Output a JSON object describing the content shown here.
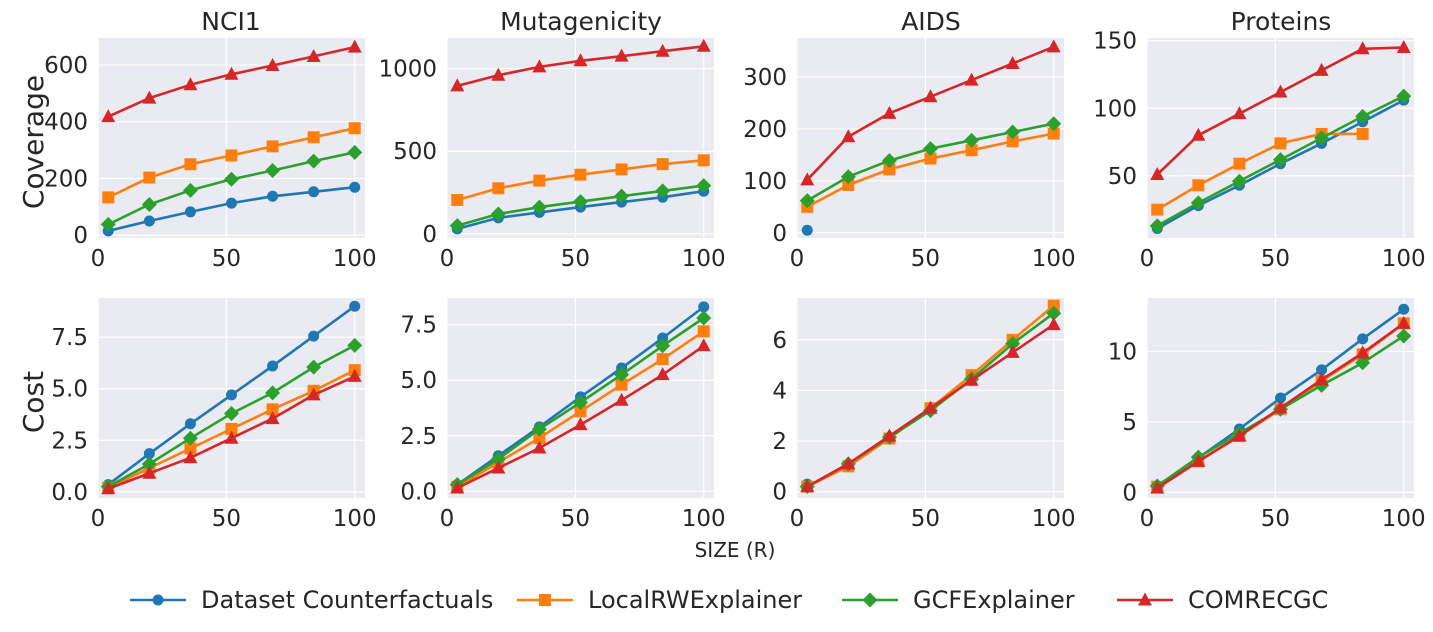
{
  "figure": {
    "column_titles": [
      "NCI1",
      "Mutagenicity",
      "AIDS",
      "Proteins"
    ],
    "row_labels": [
      "Coverage",
      "Cost"
    ],
    "shared_xlabel": "SIZE (R)"
  },
  "series_styles": [
    {
      "name": "Dataset Counterfactuals",
      "color": "#1f77b4",
      "marker": "circle"
    },
    {
      "name": "LocalRWExplainer",
      "color": "#ff7f0e",
      "marker": "square"
    },
    {
      "name": "GCFExplainer",
      "color": "#2ca02c",
      "marker": "diamond"
    },
    {
      "name": "COMRECGC",
      "color": "#d62728",
      "marker": "triangle"
    }
  ],
  "legend": {
    "entries": [
      "Dataset Counterfactuals",
      "LocalRWExplainer",
      "GCFExplainer",
      "COMRECGC"
    ],
    "placement": "bottom-center"
  },
  "chart_data": [
    {
      "type": "line",
      "title": "NCI1",
      "ylabel": "Coverage",
      "xlabel": "",
      "x": [
        4,
        20,
        36,
        52,
        68,
        84,
        100
      ],
      "xlim": [
        0,
        104
      ],
      "ylim": [
        -10,
        695
      ],
      "xticks": [
        0,
        50,
        100
      ],
      "xtick_labels": [
        "0",
        "50",
        "100"
      ],
      "yticks": [
        0,
        200,
        400,
        600
      ],
      "ytick_labels": [
        "0",
        "200",
        "400",
        "600"
      ],
      "series": [
        {
          "name": "Dataset Counterfactuals",
          "values": [
            15,
            50,
            82,
            113,
            137,
            153,
            169
          ]
        },
        {
          "name": "LocalRWExplainer",
          "values": [
            133,
            203,
            250,
            281,
            313,
            345,
            377
          ]
        },
        {
          "name": "GCFExplainer",
          "values": [
            38,
            108,
            158,
            197,
            228,
            261,
            292
          ]
        },
        {
          "name": "COMRECGC",
          "values": [
            418,
            483,
            530,
            567,
            598,
            630,
            663
          ]
        }
      ]
    },
    {
      "type": "line",
      "title": "Mutagenicity",
      "ylabel": "",
      "xlabel": "",
      "x": [
        4,
        20,
        36,
        52,
        68,
        84,
        100
      ],
      "xlim": [
        0,
        104
      ],
      "ylim": [
        -25,
        1185
      ],
      "xticks": [
        0,
        50,
        100
      ],
      "xtick_labels": [
        "0",
        "50",
        "100"
      ],
      "yticks": [
        0,
        500,
        1000
      ],
      "ytick_labels": [
        "0",
        "500",
        "1000"
      ],
      "series": [
        {
          "name": "Dataset Counterfactuals",
          "values": [
            30,
            97,
            130,
            162,
            192,
            222,
            258
          ]
        },
        {
          "name": "LocalRWExplainer",
          "values": [
            205,
            276,
            322,
            358,
            390,
            422,
            445
          ]
        },
        {
          "name": "GCFExplainer",
          "values": [
            50,
            120,
            162,
            195,
            228,
            260,
            292
          ]
        },
        {
          "name": "COMRECGC",
          "values": [
            895,
            960,
            1010,
            1047,
            1075,
            1105,
            1135
          ]
        }
      ]
    },
    {
      "type": "line",
      "title": "AIDS",
      "ylabel": "",
      "xlabel": "",
      "x": [
        4,
        20,
        36,
        52,
        68,
        84,
        100
      ],
      "xlim": [
        0,
        104
      ],
      "ylim": [
        -10,
        375
      ],
      "xticks": [
        0,
        50,
        100
      ],
      "xtick_labels": [
        "0",
        "50",
        "100"
      ],
      "yticks": [
        0,
        100,
        200,
        300
      ],
      "ytick_labels": [
        "0",
        "100",
        "200",
        "300"
      ],
      "series": [
        {
          "name": "Dataset Counterfactuals",
          "x": [
            4
          ],
          "values": [
            5
          ]
        },
        {
          "name": "LocalRWExplainer",
          "values": [
            50,
            92,
            122,
            143,
            159,
            176,
            191
          ]
        },
        {
          "name": "GCFExplainer",
          "values": [
            62,
            108,
            139,
            162,
            178,
            194,
            210
          ]
        },
        {
          "name": "COMRECGC",
          "values": [
            102,
            185,
            230,
            262,
            294,
            326,
            358
          ]
        }
      ]
    },
    {
      "type": "line",
      "title": "Proteins",
      "ylabel": "",
      "xlabel": "",
      "x": [
        4,
        20,
        36,
        52,
        68,
        84,
        100
      ],
      "xlim": [
        0,
        104
      ],
      "ylim": [
        4,
        152
      ],
      "xticks": [
        0,
        50,
        100
      ],
      "xtick_labels": [
        "0",
        "50",
        "100"
      ],
      "yticks": [
        50,
        100,
        150
      ],
      "ytick_labels": [
        "50",
        "100",
        "150"
      ],
      "series": [
        {
          "name": "Dataset Counterfactuals",
          "values": [
            11,
            28,
            43,
            59,
            74,
            90,
            106
          ]
        },
        {
          "name": "LocalRWExplainer",
          "x": [
            4,
            20,
            36,
            52,
            68,
            84
          ],
          "values": [
            25,
            43,
            59,
            74,
            81,
            81
          ]
        },
        {
          "name": "GCFExplainer",
          "values": [
            13,
            30,
            46,
            62,
            78,
            94,
            109
          ]
        },
        {
          "name": "COMRECGC",
          "values": [
            51,
            80,
            96,
            112,
            128,
            144,
            145
          ]
        }
      ]
    },
    {
      "type": "line",
      "title": "",
      "ylabel": "Cost",
      "xlabel": "",
      "x": [
        4,
        20,
        36,
        52,
        68,
        84,
        100
      ],
      "xlim": [
        0,
        104
      ],
      "ylim": [
        -0.3,
        9.4
      ],
      "xticks": [
        0,
        50,
        100
      ],
      "xtick_labels": [
        "0",
        "50",
        "100"
      ],
      "yticks": [
        0.0,
        2.5,
        5.0,
        7.5
      ],
      "ytick_labels": [
        "0.0",
        "2.5",
        "5.0",
        "7.5"
      ],
      "series": [
        {
          "name": "Dataset Counterfactuals",
          "values": [
            0.35,
            1.85,
            3.3,
            4.7,
            6.1,
            7.55,
            9.0
          ]
        },
        {
          "name": "LocalRWExplainer",
          "values": [
            0.2,
            1.15,
            2.1,
            3.05,
            4.0,
            4.9,
            5.9
          ]
        },
        {
          "name": "GCFExplainer",
          "values": [
            0.25,
            1.35,
            2.6,
            3.8,
            4.8,
            6.05,
            7.1
          ]
        },
        {
          "name": "COMRECGC",
          "values": [
            0.15,
            0.9,
            1.65,
            2.6,
            3.55,
            4.7,
            5.6
          ]
        }
      ]
    },
    {
      "type": "line",
      "title": "",
      "ylabel": "",
      "xlabel": "SIZE (R)",
      "x": [
        4,
        20,
        36,
        52,
        68,
        84,
        100
      ],
      "xlim": [
        0,
        104
      ],
      "ylim": [
        -0.3,
        8.7
      ],
      "xticks": [
        0,
        50,
        100
      ],
      "xtick_labels": [
        "0",
        "50",
        "100"
      ],
      "yticks": [
        0.0,
        2.5,
        5.0,
        7.5
      ],
      "ytick_labels": [
        "0.0",
        "2.5",
        "5.0",
        "7.5"
      ],
      "series": [
        {
          "name": "Dataset Counterfactuals",
          "values": [
            0.3,
            1.6,
            2.9,
            4.25,
            5.55,
            6.9,
            8.3
          ]
        },
        {
          "name": "LocalRWExplainer",
          "values": [
            0.2,
            1.3,
            2.4,
            3.6,
            4.8,
            5.95,
            7.2
          ]
        },
        {
          "name": "GCFExplainer",
          "values": [
            0.3,
            1.45,
            2.8,
            4.0,
            5.25,
            6.55,
            7.8
          ]
        },
        {
          "name": "COMRECGC",
          "values": [
            0.15,
            1.05,
            1.95,
            3.0,
            4.1,
            5.25,
            6.55
          ]
        }
      ]
    },
    {
      "type": "line",
      "title": "",
      "ylabel": "",
      "xlabel": "",
      "x": [
        4,
        20,
        36,
        52,
        68,
        84,
        100
      ],
      "xlim": [
        0,
        104
      ],
      "ylim": [
        -0.25,
        7.65
      ],
      "xticks": [
        0,
        50,
        100
      ],
      "xtick_labels": [
        "0",
        "50",
        "100"
      ],
      "yticks": [
        0,
        2,
        4,
        6
      ],
      "ytick_labels": [
        "0",
        "2",
        "4",
        "6"
      ],
      "series": [
        {
          "name": "Dataset Counterfactuals",
          "x": [
            4
          ],
          "values": [
            0.3
          ]
        },
        {
          "name": "LocalRWExplainer",
          "values": [
            0.2,
            1.0,
            2.1,
            3.3,
            4.6,
            6.0,
            7.35
          ]
        },
        {
          "name": "GCFExplainer",
          "values": [
            0.2,
            1.1,
            2.15,
            3.2,
            4.45,
            5.85,
            7.05
          ]
        },
        {
          "name": "COMRECGC",
          "values": [
            0.2,
            1.1,
            2.2,
            3.3,
            4.4,
            5.5,
            6.6
          ]
        }
      ]
    },
    {
      "type": "line",
      "title": "",
      "ylabel": "",
      "xlabel": "",
      "x": [
        4,
        20,
        36,
        52,
        68,
        84,
        100
      ],
      "xlim": [
        0,
        104
      ],
      "ylim": [
        -0.4,
        13.8
      ],
      "xticks": [
        0,
        50,
        100
      ],
      "xtick_labels": [
        "0",
        "50",
        "100"
      ],
      "yticks": [
        0,
        5,
        10
      ],
      "ytick_labels": [
        "0",
        "5",
        "10"
      ],
      "series": [
        {
          "name": "Dataset Counterfactuals",
          "values": [
            0.4,
            2.45,
            4.5,
            6.7,
            8.7,
            10.9,
            13.0
          ]
        },
        {
          "name": "LocalRWExplainer",
          "values": [
            0.4,
            2.2,
            4.0,
            5.9,
            7.9,
            9.8,
            12.0
          ]
        },
        {
          "name": "GCFExplainer",
          "values": [
            0.45,
            2.5,
            4.2,
            5.9,
            7.6,
            9.2,
            11.1
          ]
        },
        {
          "name": "COMRECGC",
          "values": [
            0.3,
            2.2,
            4.0,
            6.0,
            8.0,
            9.9,
            12.0
          ]
        }
      ]
    }
  ]
}
